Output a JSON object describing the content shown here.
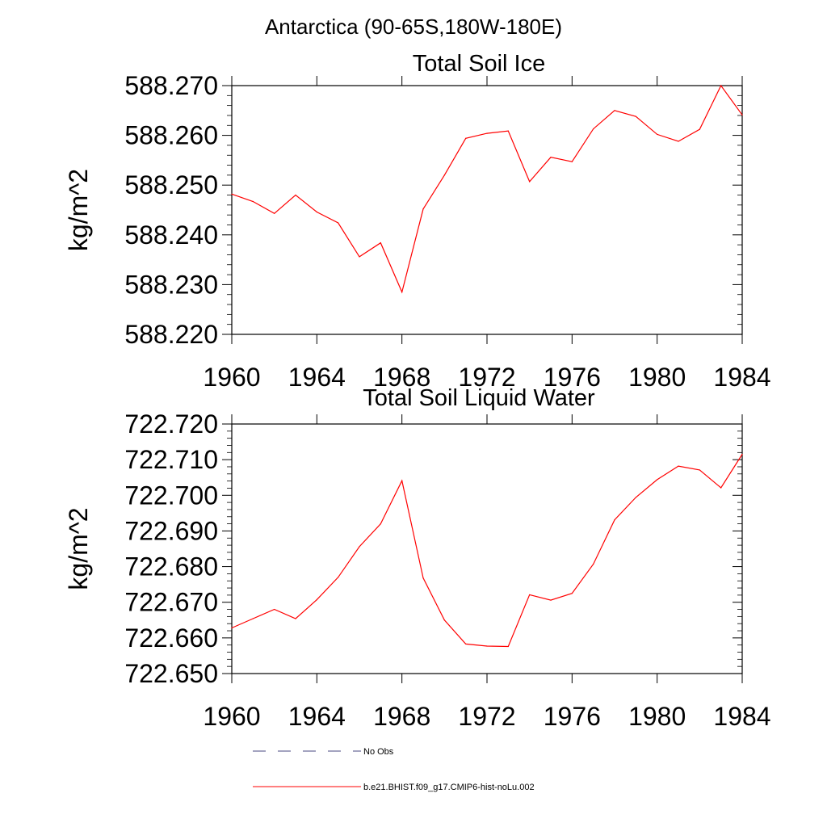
{
  "page_title": "Antarctica (90-65S,180W-180E)",
  "chart_data": [
    {
      "type": "line",
      "title": "Total Soil Ice",
      "ylabel": "kg/m^2",
      "xlabel": "",
      "xlim": [
        1960,
        1984
      ],
      "ylim": [
        588.22,
        588.27
      ],
      "x_ticks": [
        "1960",
        "1964",
        "1968",
        "1972",
        "1976",
        "1980",
        "1984"
      ],
      "y_ticks": [
        "588.220",
        "588.230",
        "588.240",
        "588.250",
        "588.260",
        "588.270"
      ],
      "grid": false,
      "series": [
        {
          "name": "b.e21.BHIST.f09_g17.CMIP6-hist-noLu.002",
          "color": "#ff0000",
          "x": [
            1960,
            1961,
            1962,
            1963,
            1964,
            1965,
            1966,
            1967,
            1968,
            1969,
            1970,
            1971,
            1972,
            1973,
            1974,
            1975,
            1976,
            1977,
            1978,
            1979,
            1980,
            1981,
            1982,
            1983,
            1984
          ],
          "values": [
            588.2482,
            588.2467,
            588.2443,
            588.248,
            588.2446,
            588.2424,
            588.2356,
            588.2384,
            588.2285,
            588.2452,
            588.252,
            588.2594,
            588.2604,
            588.2609,
            588.2507,
            588.2556,
            588.2547,
            588.2613,
            588.265,
            588.2638,
            588.2602,
            588.2588,
            588.2612,
            588.27,
            588.2641
          ]
        }
      ]
    },
    {
      "type": "line",
      "title": "Total Soil Liquid Water",
      "ylabel": "kg/m^2",
      "xlabel": "",
      "xlim": [
        1960,
        1984
      ],
      "ylim": [
        722.65,
        722.72
      ],
      "x_ticks": [
        "1960",
        "1964",
        "1968",
        "1972",
        "1976",
        "1980",
        "1984"
      ],
      "y_ticks": [
        "722.650",
        "722.660",
        "722.670",
        "722.680",
        "722.690",
        "722.700",
        "722.710",
        "722.720"
      ],
      "grid": false,
      "series": [
        {
          "name": "b.e21.BHIST.f09_g17.CMIP6-hist-noLu.002",
          "color": "#ff0000",
          "x": [
            1960,
            1961,
            1962,
            1963,
            1964,
            1965,
            1966,
            1967,
            1968,
            1969,
            1970,
            1971,
            1972,
            1973,
            1974,
            1975,
            1976,
            1977,
            1978,
            1979,
            1980,
            1981,
            1982,
            1983,
            1984
          ],
          "values": [
            722.6628,
            722.6654,
            722.668,
            722.6654,
            722.6707,
            722.677,
            722.6856,
            722.692,
            722.7041,
            722.6768,
            722.665,
            722.6583,
            722.6577,
            722.6576,
            722.6721,
            722.6706,
            722.6725,
            722.6807,
            722.6931,
            722.6994,
            722.7044,
            722.7082,
            722.7071,
            722.7021,
            722.7115
          ]
        }
      ]
    }
  ],
  "legend": {
    "placement": "bottom",
    "items": [
      {
        "label": "No Obs",
        "color": "#4a4a80",
        "style": "dashed"
      },
      {
        "label": "b.e21.BHIST.f09_g17.CMIP6-hist-noLu.002",
        "color": "#ff0000",
        "style": "solid"
      }
    ]
  }
}
